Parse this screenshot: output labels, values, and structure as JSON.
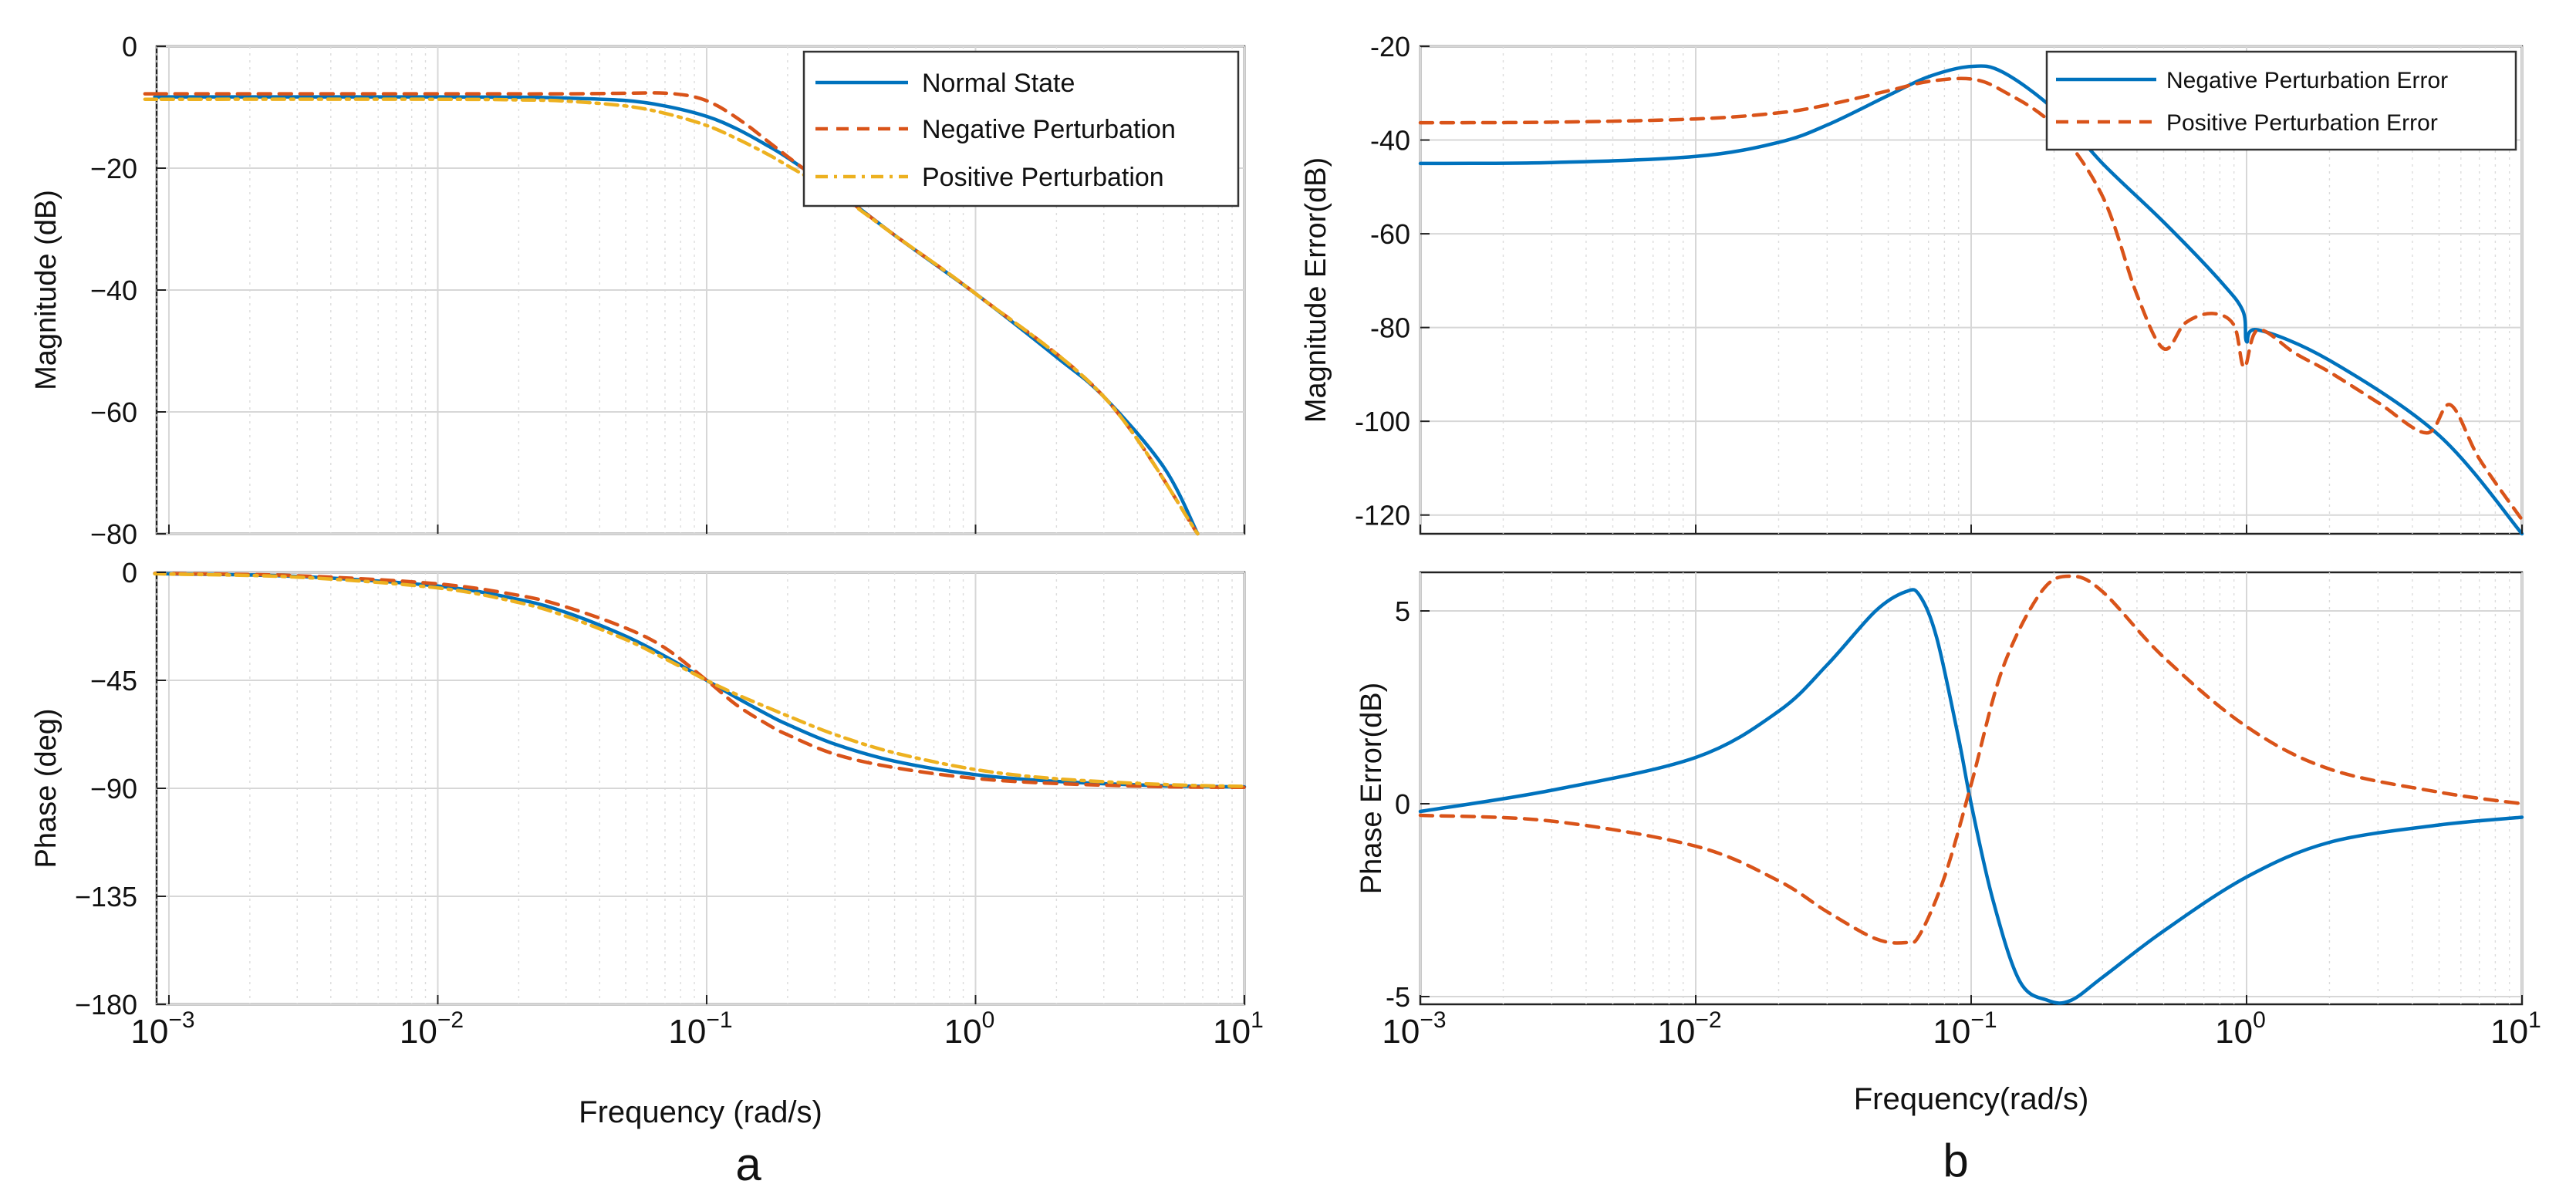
{
  "chart_data": [
    {
      "id": "a-magnitude",
      "type": "line",
      "xscale": "log",
      "xlim": [
        0.0009,
        10
      ],
      "ylim": [
        -80,
        0
      ],
      "ylabel": "Magnitude (dB)",
      "yticks": [
        "0",
        "−20",
        "−40",
        "−60",
        "−80"
      ],
      "legend": "top-right",
      "series": [
        {
          "name": "Normal State",
          "color": "#0072BD",
          "style": "solid",
          "x": [
            0.0009,
            0.001,
            0.003,
            0.01,
            0.02,
            0.03,
            0.05,
            0.07,
            0.1,
            0.13,
            0.17,
            0.2,
            0.25,
            0.3,
            0.5,
            1,
            2,
            3,
            5,
            6.7
          ],
          "y": [
            -8.3,
            -8.3,
            -8.3,
            -8.3,
            -8.35,
            -8.5,
            -8.9,
            -9.8,
            -11.5,
            -13.6,
            -16.4,
            -18.3,
            -21.2,
            -23.5,
            -31.0,
            -40.6,
            -51.0,
            -57.5,
            -69.0,
            -80.0
          ]
        },
        {
          "name": "Negative Perturbation",
          "color": "#D95319",
          "style": "dashed",
          "x": [
            0.0009,
            0.001,
            0.01,
            0.03,
            0.05,
            0.07,
            0.09,
            0.11,
            0.14,
            0.17,
            0.2,
            0.25,
            0.3,
            0.5,
            1,
            3,
            6.7
          ],
          "y": [
            -7.8,
            -7.8,
            -7.8,
            -7.8,
            -7.7,
            -7.7,
            -8.3,
            -9.8,
            -12.8,
            -15.7,
            -18.1,
            -21.3,
            -23.6,
            -31.0,
            -40.6,
            -57.5,
            -80.0
          ]
        },
        {
          "name": "Positive Perturbation",
          "color": "#EDB120",
          "style": "dashdot",
          "x": [
            0.0009,
            0.001,
            0.01,
            0.02,
            0.03,
            0.05,
            0.07,
            0.1,
            0.13,
            0.17,
            0.2,
            0.25,
            0.3,
            0.5,
            1,
            3,
            6.7
          ],
          "y": [
            -8.7,
            -8.7,
            -8.7,
            -8.8,
            -9.0,
            -9.8,
            -11.0,
            -13.0,
            -15.2,
            -17.8,
            -19.6,
            -22.0,
            -23.9,
            -31.0,
            -40.6,
            -57.5,
            -80.0
          ]
        }
      ]
    },
    {
      "id": "a-phase",
      "type": "line",
      "xscale": "log",
      "xlim": [
        0.0009,
        10
      ],
      "ylim": [
        -180,
        0
      ],
      "ylabel": "Phase (deg)",
      "xlabel": "Frequency  (rad/s)",
      "xticks": [
        "10",
        "10",
        "10",
        "10",
        "10"
      ],
      "xtick_exponents": [
        "−3",
        "−2",
        "−1",
        "0",
        "1"
      ],
      "yticks": [
        "0",
        "−45",
        "−90",
        "−135",
        "−180"
      ],
      "series": [
        {
          "name": "Normal State",
          "color": "#0072BD",
          "style": "solid",
          "x": [
            0.0009,
            0.001,
            0.003,
            0.01,
            0.02,
            0.03,
            0.05,
            0.07,
            0.1,
            0.13,
            0.17,
            0.2,
            0.3,
            0.5,
            1,
            2,
            5,
            10
          ],
          "y": [
            -0.5,
            -0.6,
            -1.7,
            -5.7,
            -11.3,
            -16.7,
            -26.6,
            -35.0,
            -45.0,
            -52.4,
            -59.5,
            -63.4,
            -71.6,
            -78.7,
            -84.3,
            -87.1,
            -88.9,
            -89.4
          ]
        },
        {
          "name": "Negative Perturbation",
          "color": "#D95319",
          "style": "dashed",
          "x": [
            0.0009,
            0.001,
            0.003,
            0.01,
            0.02,
            0.03,
            0.05,
            0.07,
            0.1,
            0.13,
            0.17,
            0.2,
            0.3,
            0.5,
            1,
            2,
            5,
            10
          ],
          "y": [
            -0.4,
            -0.5,
            -1.4,
            -4.8,
            -9.6,
            -14.4,
            -23.2,
            -31.5,
            -45.0,
            -55.5,
            -63.6,
            -67.7,
            -75.8,
            -81.4,
            -85.9,
            -88.0,
            -89.3,
            -89.6
          ]
        },
        {
          "name": "Positive Perturbation",
          "color": "#EDB120",
          "style": "dashdot",
          "x": [
            0.0009,
            0.001,
            0.003,
            0.01,
            0.02,
            0.03,
            0.05,
            0.07,
            0.1,
            0.13,
            0.17,
            0.2,
            0.3,
            0.5,
            1,
            2,
            5,
            10
          ],
          "y": [
            -0.6,
            -0.7,
            -2.0,
            -6.5,
            -12.6,
            -18.3,
            -28.0,
            -36.0,
            -45.0,
            -51.0,
            -56.5,
            -59.8,
            -67.6,
            -75.2,
            -82.2,
            -86.0,
            -88.4,
            -89.2
          ]
        }
      ]
    },
    {
      "id": "b-magnitude-error",
      "type": "line",
      "xscale": "log",
      "xlim": [
        0.001,
        10
      ],
      "ylim": [
        -124,
        -20
      ],
      "ylabel": "Magnitude Error(dB)",
      "yticks": [
        "-20",
        "-40",
        "-60",
        "-80",
        "-100",
        "-120"
      ],
      "legend": "top-right",
      "series": [
        {
          "name": "Negative Perturbation Error",
          "color": "#0072BD",
          "style": "solid",
          "x": [
            0.001,
            0.003,
            0.01,
            0.02,
            0.03,
            0.05,
            0.07,
            0.1,
            0.13,
            0.2,
            0.3,
            0.5,
            0.8,
            0.97,
            1.0,
            1.1,
            2,
            5,
            10
          ],
          "y": [
            -45,
            -44.8,
            -43.5,
            -40.5,
            -36.8,
            -30.5,
            -26.5,
            -24.3,
            -25.5,
            -33.5,
            -45.0,
            -57.5,
            -70.0,
            -76.5,
            -83.0,
            -80.5,
            -87.0,
            -103.0,
            -124.0
          ]
        },
        {
          "name": "Positive Perturbation Error",
          "color": "#D95319",
          "style": "dashed",
          "x": [
            0.001,
            0.003,
            0.01,
            0.02,
            0.03,
            0.05,
            0.07,
            0.1,
            0.13,
            0.2,
            0.3,
            0.4,
            0.5,
            0.6,
            0.75,
            0.9,
            0.98,
            1.1,
            1.5,
            2,
            3,
            4.5,
            5.5,
            7,
            10
          ],
          "y": [
            -36.3,
            -36.2,
            -35.5,
            -34.2,
            -32.5,
            -29.5,
            -27.5,
            -27.0,
            -29.5,
            -37.0,
            -52.0,
            -73.0,
            -84.5,
            -79.0,
            -77.0,
            -79.5,
            -88.5,
            -80.5,
            -85.5,
            -89.5,
            -96.0,
            -102.5,
            -96.5,
            -108.0,
            -121.0
          ]
        }
      ]
    },
    {
      "id": "b-phase-error",
      "type": "line",
      "xscale": "log",
      "xlim": [
        0.001,
        10
      ],
      "ylim": [
        -5.2,
        6
      ],
      "ylabel": "Phase Error(dB)",
      "xlabel": "Frequency(rad/s)",
      "xticks": [
        "10",
        "10",
        "10",
        "10",
        "10"
      ],
      "xtick_exponents": [
        "−3",
        "−2",
        "−1",
        "0",
        "1"
      ],
      "yticks": [
        "5",
        "0",
        "-5"
      ],
      "series": [
        {
          "name": "Negative Perturbation Error",
          "color": "#0072BD",
          "style": "solid",
          "x": [
            0.001,
            0.003,
            0.01,
            0.02,
            0.03,
            0.045,
            0.058,
            0.065,
            0.075,
            0.09,
            0.1,
            0.12,
            0.15,
            0.19,
            0.23,
            0.3,
            0.5,
            1,
            2,
            5,
            10
          ],
          "y": [
            -0.2,
            0.35,
            1.2,
            2.4,
            3.6,
            5.0,
            5.5,
            5.4,
            4.3,
            1.7,
            0.0,
            -2.5,
            -4.6,
            -5.1,
            -5.1,
            -4.5,
            -3.3,
            -1.9,
            -1.0,
            -0.55,
            -0.35
          ]
        },
        {
          "name": "Positive Perturbation Error",
          "color": "#D95319",
          "style": "dashed",
          "x": [
            0.001,
            0.003,
            0.01,
            0.02,
            0.03,
            0.045,
            0.058,
            0.065,
            0.08,
            0.1,
            0.13,
            0.18,
            0.23,
            0.3,
            0.5,
            1,
            2,
            5,
            10
          ],
          "y": [
            -0.3,
            -0.45,
            -1.1,
            -2.0,
            -2.8,
            -3.5,
            -3.6,
            -3.4,
            -1.9,
            0.5,
            3.5,
            5.5,
            5.9,
            5.5,
            3.8,
            2.0,
            0.9,
            0.3,
            0.0
          ]
        }
      ]
    }
  ],
  "panel_labels": {
    "a": "a",
    "b": "b"
  },
  "colors": {
    "blue": "#0072BD",
    "orange": "#D95319",
    "yellow": "#EDB120"
  }
}
